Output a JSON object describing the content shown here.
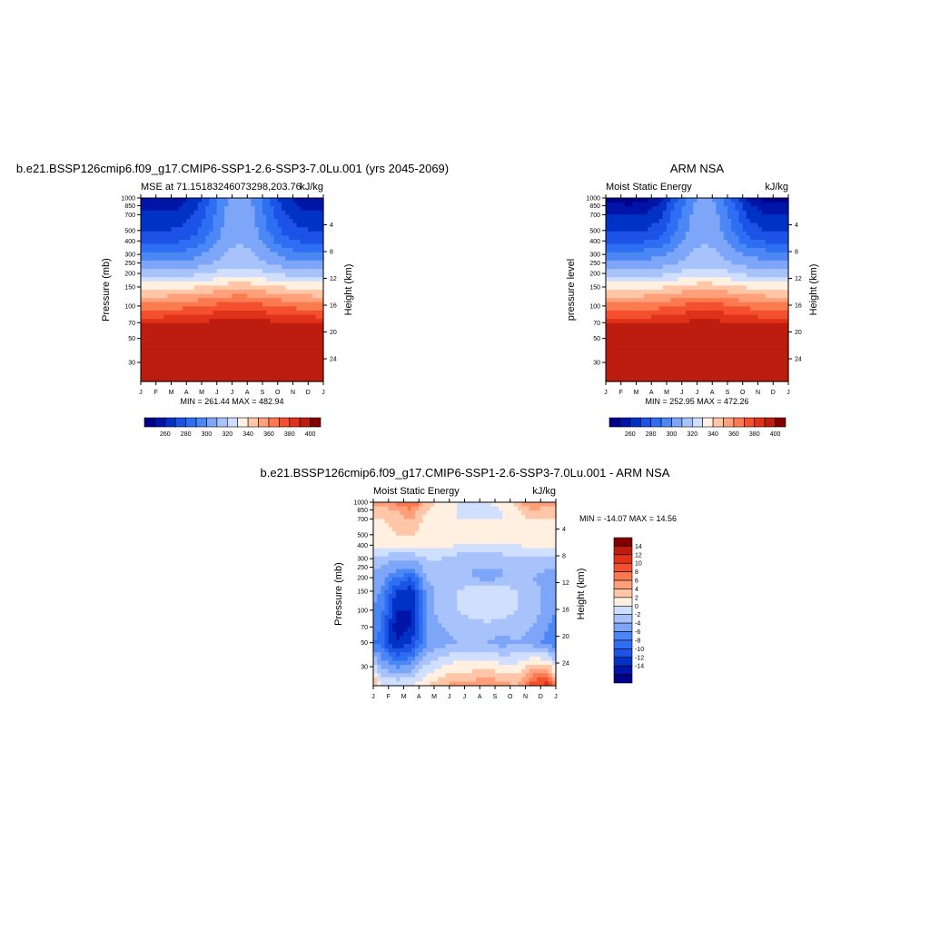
{
  "panels": {
    "model": {
      "title": "b.e21.BSSP126cmip6.f09_g17.CMIP6-SSP1-2.6-SSP3-7.0Lu.001 (yrs 2045-2069)",
      "left_string": "MSE at 71.15183246073298,203.76",
      "right_string": "kJ/kg",
      "ylabel": "Pressure (mb)",
      "ylabel_right": "Height (km)",
      "minmax": "MIN = 261.44 MAX = 482.94"
    },
    "obs": {
      "title": "ARM NSA",
      "left_string": "Moist Static Energy",
      "right_string": "kJ/kg",
      "ylabel": "pressure level",
      "ylabel_right": "Height (km)",
      "minmax": "MIN = 252.95 MAX = 472.26"
    },
    "diff": {
      "title": "b.e21.BSSP126cmip6.f09_g17.CMIP6-SSP1-2.6-SSP3-7.0Lu.001 - ARM NSA",
      "left_string": "Moist Static Energy",
      "right_string": "kJ/kg",
      "ylabel": "Pressure (mb)",
      "ylabel_right": "Height (km)",
      "minmax": "MIN = -14.07 MAX =  14.56"
    }
  },
  "chart_data": [
    {
      "type": "heatmap",
      "title": "b.e21.BSSP126cmip6.f09_g17.CMIP6-SSP1-2.6-SSP3-7.0Lu.001 (yrs 2045-2069)",
      "subtitle": "MSE at 71.15183246073298,203.76",
      "units": "kJ/kg",
      "ylabel": "Pressure (mb)",
      "ylabel_right": "Height (km)",
      "x_ticks": [
        "J",
        "F",
        "M",
        "A",
        "M",
        "J",
        "J",
        "A",
        "S",
        "O",
        "N",
        "D",
        "J"
      ],
      "y_ticks": [
        30,
        50,
        70,
        100,
        150,
        200,
        250,
        300,
        400,
        500,
        700,
        850,
        1000
      ],
      "y_right_ticks": [
        24,
        20,
        16,
        12,
        8,
        4
      ],
      "ylim": [
        1000,
        20
      ],
      "months": [
        "Jan",
        "Feb",
        "Mar",
        "Apr",
        "May",
        "Jun",
        "Jul",
        "Aug",
        "Sep",
        "Oct",
        "Nov",
        "Dec"
      ],
      "levels": [
        1000,
        850,
        700,
        500,
        400,
        300,
        250,
        200,
        150,
        100,
        70,
        50,
        20
      ],
      "values": [
        [
          262,
          262,
          264,
          272,
          290,
          308,
          316,
          308,
          290,
          272,
          264,
          262
        ],
        [
          266,
          266,
          268,
          276,
          292,
          309,
          317,
          309,
          292,
          276,
          268,
          266
        ],
        [
          272,
          272,
          274,
          280,
          294,
          310,
          317,
          310,
          294,
          280,
          274,
          272
        ],
        [
          280,
          280,
          281,
          286,
          298,
          312,
          318,
          312,
          298,
          286,
          281,
          280
        ],
        [
          288,
          288,
          289,
          293,
          303,
          315,
          320,
          315,
          303,
          293,
          289,
          288
        ],
        [
          302,
          302,
          303,
          306,
          313,
          320,
          324,
          320,
          313,
          306,
          303,
          302
        ],
        [
          311,
          311,
          312,
          314,
          319,
          324,
          327,
          324,
          319,
          314,
          312,
          311
        ],
        [
          324,
          324,
          325,
          327,
          330,
          334,
          336,
          334,
          330,
          327,
          325,
          324
        ],
        [
          346,
          346,
          347,
          349,
          352,
          355,
          357,
          355,
          352,
          349,
          347,
          346
        ],
        [
          375,
          375,
          376,
          378,
          381,
          384,
          386,
          384,
          381,
          378,
          376,
          375
        ],
        [
          398,
          398,
          399,
          400,
          402,
          404,
          405,
          404,
          402,
          400,
          399,
          398
        ],
        [
          425,
          425,
          426,
          427,
          429,
          431,
          432,
          431,
          429,
          427,
          426,
          425
        ],
        [
          475,
          475,
          476,
          477,
          478,
          480,
          482,
          480,
          478,
          477,
          476,
          475
        ]
      ],
      "contour_levels": [
        260,
        270,
        280,
        290,
        300,
        310,
        320,
        330,
        340,
        350,
        360,
        370,
        380,
        390,
        400
      ],
      "colorbar_labels": [
        "260",
        "280",
        "300",
        "320",
        "340",
        "360",
        "380",
        "400"
      ],
      "min": 261.44,
      "max": 482.94
    },
    {
      "type": "heatmap",
      "title": "ARM NSA",
      "subtitle": "Moist Static Energy",
      "units": "kJ/kg",
      "ylabel": "pressure level",
      "ylabel_right": "Height (km)",
      "x_ticks": [
        "J",
        "F",
        "M",
        "A",
        "M",
        "J",
        "J",
        "A",
        "S",
        "O",
        "N",
        "D",
        "J"
      ],
      "y_ticks": [
        30,
        50,
        70,
        100,
        150,
        200,
        250,
        300,
        400,
        500,
        700,
        850,
        1000
      ],
      "y_right_ticks": [
        24,
        20,
        16,
        12,
        8,
        4
      ],
      "ylim": [
        1000,
        20
      ],
      "months": [
        "Jan",
        "Feb",
        "Mar",
        "Apr",
        "May",
        "Jun",
        "Jul",
        "Aug",
        "Sep",
        "Oct",
        "Nov",
        "Dec"
      ],
      "levels": [
        1000,
        850,
        700,
        500,
        400,
        300,
        250,
        200,
        150,
        100,
        70,
        50,
        20
      ],
      "values": [
        [
          255,
          254,
          256,
          266,
          285,
          305,
          315,
          305,
          285,
          266,
          257,
          255
        ],
        [
          262,
          261,
          263,
          271,
          289,
          307,
          316,
          307,
          289,
          271,
          263,
          262
        ],
        [
          270,
          269,
          271,
          277,
          293,
          309,
          317,
          309,
          293,
          277,
          271,
          270
        ],
        [
          279,
          279,
          280,
          285,
          298,
          312,
          318,
          312,
          298,
          285,
          280,
          279
        ],
        [
          288,
          288,
          289,
          293,
          303,
          315,
          320,
          315,
          303,
          293,
          289,
          288
        ],
        [
          304,
          304,
          305,
          307,
          313,
          320,
          324,
          320,
          313,
          307,
          305,
          304
        ],
        [
          313,
          313,
          314,
          315,
          319,
          324,
          327,
          324,
          319,
          315,
          314,
          313
        ],
        [
          325,
          325,
          326,
          327,
          330,
          334,
          336,
          334,
          330,
          327,
          326,
          325
        ],
        [
          346,
          346,
          346,
          348,
          351,
          354,
          356,
          354,
          351,
          348,
          346,
          346
        ],
        [
          374,
          374,
          375,
          377,
          380,
          383,
          385,
          383,
          380,
          377,
          375,
          374
        ],
        [
          396,
          396,
          397,
          398,
          400,
          402,
          403,
          402,
          400,
          398,
          397,
          396
        ],
        [
          422,
          422,
          423,
          424,
          426,
          428,
          429,
          428,
          426,
          424,
          423,
          422
        ],
        [
          468,
          468,
          469,
          470,
          471,
          472,
          472,
          471,
          470,
          469,
          468,
          468
        ]
      ],
      "contour_levels": [
        260,
        270,
        280,
        290,
        300,
        310,
        320,
        330,
        340,
        350,
        360,
        370,
        380,
        390,
        400
      ],
      "colorbar_labels": [
        "260",
        "280",
        "300",
        "320",
        "340",
        "360",
        "380",
        "400"
      ],
      "min": 252.95,
      "max": 472.26
    },
    {
      "type": "heatmap",
      "title": "b.e21.BSSP126cmip6.f09_g17.CMIP6-SSP1-2.6-SSP3-7.0Lu.001 - ARM NSA",
      "subtitle": "Moist Static Energy",
      "units": "kJ/kg",
      "ylabel": "Pressure (mb)",
      "ylabel_right": "Height (km)",
      "x_ticks": [
        "J",
        "F",
        "M",
        "A",
        "M",
        "J",
        "J",
        "A",
        "S",
        "O",
        "N",
        "D",
        "J"
      ],
      "y_ticks": [
        30,
        50,
        70,
        100,
        150,
        200,
        250,
        300,
        400,
        500,
        700,
        850,
        1000
      ],
      "y_right_ticks": [
        24,
        20,
        16,
        12,
        8,
        4
      ],
      "ylim": [
        1000,
        20
      ],
      "months": [
        "Jan",
        "Feb",
        "Mar",
        "Apr",
        "May",
        "Jun",
        "Jul",
        "Aug",
        "Sep",
        "Oct",
        "Nov",
        "Dec"
      ],
      "levels": [
        1000,
        850,
        700,
        500,
        400,
        300,
        250,
        200,
        150,
        100,
        70,
        50,
        20
      ],
      "values": [
        [
          7,
          9,
          11,
          5,
          3,
          2,
          1,
          2,
          3,
          5,
          9,
          7
        ],
        [
          5,
          6,
          8,
          4,
          3,
          2,
          0,
          1,
          2,
          4,
          6,
          5
        ],
        [
          4,
          5,
          6,
          3,
          3,
          2,
          2,
          2,
          2,
          3,
          4,
          4
        ],
        [
          3,
          4,
          4,
          3,
          3,
          2,
          2,
          2,
          2,
          3,
          3,
          3
        ],
        [
          3,
          3,
          3,
          3,
          3,
          2,
          2,
          2,
          2,
          2,
          3,
          3
        ],
        [
          -1,
          -2,
          -2,
          0,
          0,
          -1,
          -1,
          -1,
          -1,
          0,
          -1,
          -1
        ],
        [
          -2,
          -3,
          -4,
          -1,
          -1,
          -1,
          -2,
          -2,
          -2,
          -1,
          -1,
          -2
        ],
        [
          -3,
          -6,
          -8,
          -2,
          -1,
          -1,
          -2,
          -3,
          -2,
          -1,
          -2,
          -3
        ],
        [
          -4,
          -10,
          -11,
          -3,
          -1,
          0,
          1,
          2,
          1,
          0,
          -1,
          -3
        ],
        [
          -5,
          -12,
          -12,
          -3,
          -1,
          0,
          1,
          2,
          1,
          0,
          -1,
          -3
        ],
        [
          -6,
          -13,
          -12,
          -4,
          -2,
          -1,
          -1,
          -1,
          -1,
          -1,
          -2,
          -4
        ],
        [
          -7,
          -12,
          -10,
          -4,
          -3,
          -2,
          -2,
          -2,
          -3,
          -2,
          -3,
          -5
        ],
        [
          2,
          2,
          2,
          4,
          6,
          7,
          7,
          8,
          7,
          6,
          12,
          13
        ]
      ],
      "contour_levels": [
        -14,
        -12,
        -10,
        -8,
        -6,
        -4,
        -2,
        0,
        2,
        4,
        6,
        8,
        10,
        12,
        14
      ],
      "colorbar_labels": [
        "14",
        "12",
        "10",
        "8",
        "6",
        "4",
        "2",
        "0",
        "-2",
        "-4",
        "-6",
        "-8",
        "-10",
        "-12",
        "-14"
      ],
      "min": -14.07,
      "max": 14.56
    }
  ],
  "colors": {
    "palette": [
      "#00008b",
      "#0015a8",
      "#0033c5",
      "#1c52e5",
      "#2e6ef2",
      "#4c88f5",
      "#7ea6f8",
      "#a8c2fb",
      "#d0dffd",
      "#fff0e1",
      "#ffc6a8",
      "#ffa07a",
      "#fb7a50",
      "#f4502f",
      "#e0321b",
      "#bd1d0e",
      "#800000"
    ]
  }
}
